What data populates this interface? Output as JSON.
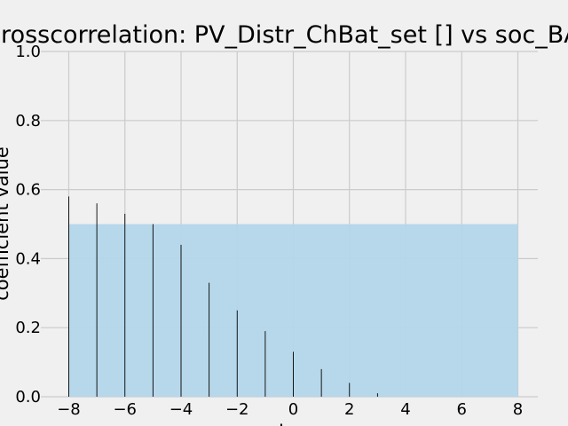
{
  "chart_data": {
    "type": "bar",
    "title": "Crosscorrelation: PV_Distr_ChBat_set [] vs soc_BAT []",
    "xlabel": "lag",
    "ylabel": "coefficient value",
    "xlim": [
      -8,
      8
    ],
    "ylim": [
      0,
      1.0
    ],
    "xticks": [
      "−8",
      "−6",
      "−4",
      "−2",
      "0",
      "2",
      "4",
      "6",
      "8"
    ],
    "yticks": [
      "0.0",
      "0.2",
      "0.4",
      "0.6",
      "0.8",
      "1.0"
    ],
    "grid": true,
    "lags": [
      -8,
      -7,
      -6,
      -5,
      -4,
      -3,
      -2,
      -1,
      0,
      1,
      2,
      3
    ],
    "values": [
      0.58,
      0.56,
      0.53,
      0.5,
      0.44,
      0.33,
      0.25,
      0.19,
      0.13,
      0.08,
      0.04,
      0.01
    ],
    "threshold_band": {
      "x": [
        -8,
        8
      ],
      "y": [
        0,
        0.5
      ],
      "color": "#b3d6ea"
    },
    "colors": {
      "bar": "#000000",
      "grid": "#cbcbcb",
      "background": "#f0f0f0"
    }
  }
}
